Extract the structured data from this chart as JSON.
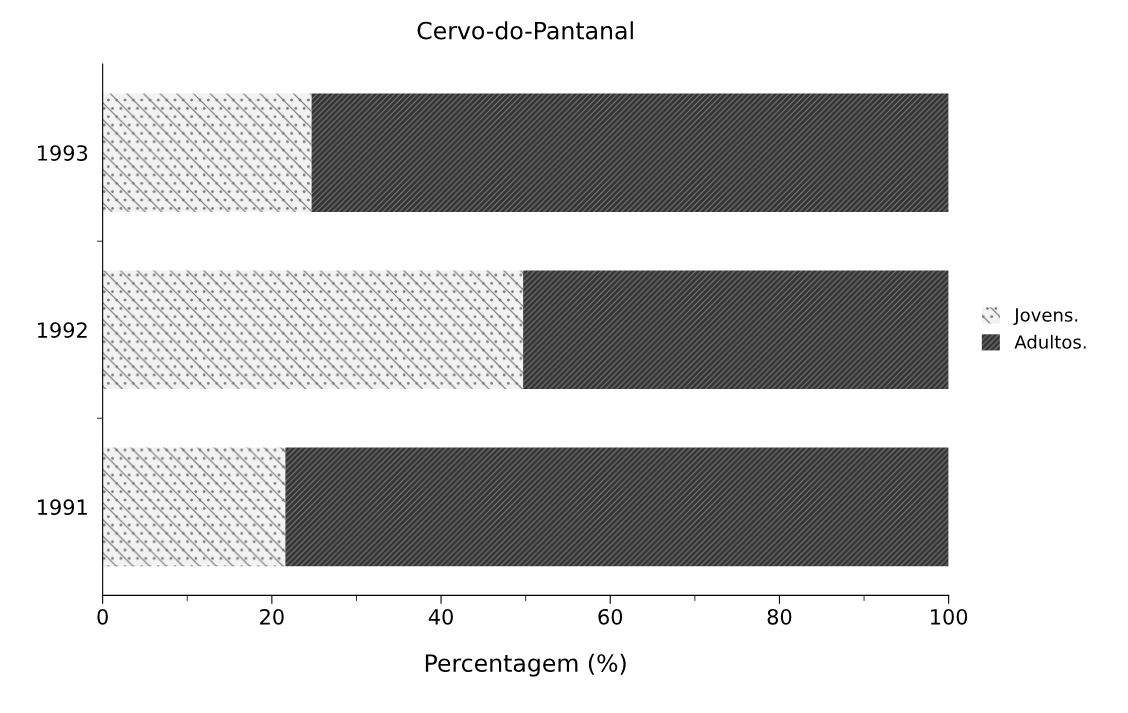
{
  "chart_data": {
    "type": "bar",
    "orientation": "horizontal",
    "stacked": true,
    "title": "Cervo-do-Pantanal",
    "xlabel": "Percentagem (%)",
    "categories": [
      "1993",
      "1992",
      "1991"
    ],
    "series": [
      {
        "name": "Jovens.",
        "color": "#f2f2f2",
        "values": [
          24.7,
          49.7,
          21.6
        ]
      },
      {
        "name": "Adultos.",
        "color": "#333333",
        "values": [
          75.3,
          50.3,
          78.4
        ]
      }
    ],
    "xlim": [
      0,
      100
    ],
    "xticks": [
      0,
      20,
      40,
      60,
      80,
      100
    ],
    "grid": false,
    "legend": "right"
  }
}
